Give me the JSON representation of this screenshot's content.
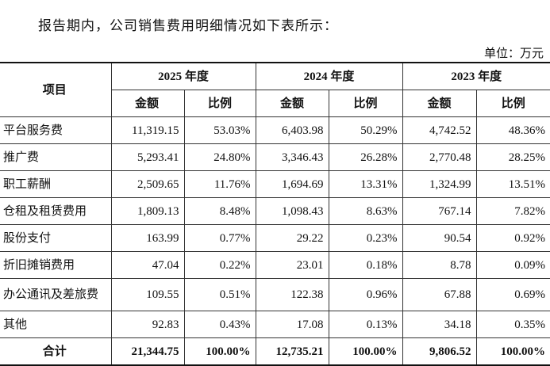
{
  "intro": "报告期内，公司销售费用明细情况如下表所示：",
  "unit": "单位：万元",
  "table": {
    "header": {
      "item": "项目",
      "years": [
        "2025 年度",
        "2024 年度",
        "2023 年度"
      ],
      "sub": [
        "金额",
        "比例",
        "金额",
        "比例",
        "金额",
        "比例"
      ]
    },
    "rows": [
      [
        "平台服务费",
        "11,319.15",
        "53.03%",
        "6,403.98",
        "50.29%",
        "4,742.52",
        "48.36%"
      ],
      [
        "推广费",
        "5,293.41",
        "24.80%",
        "3,346.43",
        "26.28%",
        "2,770.48",
        "28.25%"
      ],
      [
        "职工薪酬",
        "2,509.65",
        "11.76%",
        "1,694.69",
        "13.31%",
        "1,324.99",
        "13.51%"
      ],
      [
        "仓租及租赁费用",
        "1,809.13",
        "8.48%",
        "1,098.43",
        "8.63%",
        "767.14",
        "7.82%"
      ],
      [
        "股份支付",
        "163.99",
        "0.77%",
        "29.22",
        "0.23%",
        "90.54",
        "0.92%"
      ],
      [
        "折旧摊销费用",
        "47.04",
        "0.22%",
        "23.01",
        "0.18%",
        "8.78",
        "0.09%"
      ],
      [
        "办公通讯及差旅费",
        "109.55",
        "0.51%",
        "122.38",
        "0.96%",
        "67.88",
        "0.69%"
      ],
      [
        "其他",
        "92.83",
        "0.43%",
        "17.08",
        "0.13%",
        "34.18",
        "0.35%"
      ]
    ],
    "total": [
      "合计",
      "21,344.75",
      "100.00%",
      "12,735.21",
      "100.00%",
      "9,806.52",
      "100.00%"
    ]
  }
}
